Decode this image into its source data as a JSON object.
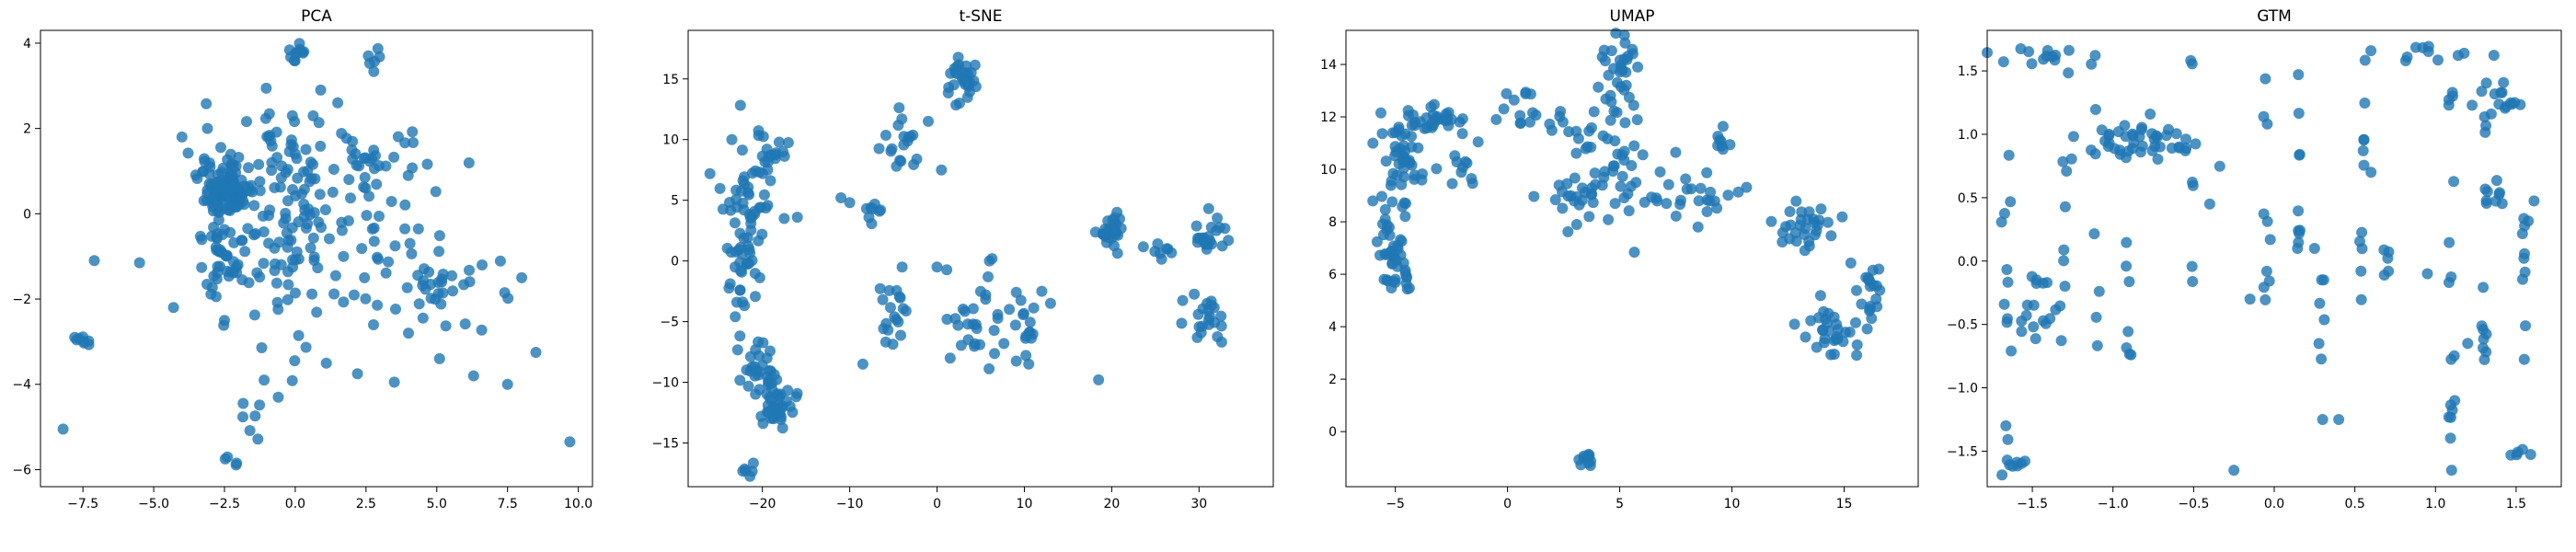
{
  "colors": {
    "point": "#1f77b4",
    "axis": "#000000",
    "background": "#ffffff"
  },
  "chart_data": [
    {
      "type": "scatter",
      "title": "PCA",
      "xlabel": "",
      "ylabel": "",
      "xlim": [
        -9,
        10.5
      ],
      "ylim": [
        -6.4,
        4.3
      ],
      "xticks": [
        -7.5,
        -5.0,
        -2.5,
        0.0,
        2.5,
        5.0,
        7.5,
        10.0
      ],
      "xtick_labels": [
        "−7.5",
        "−5.0",
        "−2.5",
        "0.0",
        "2.5",
        "5.0",
        "7.5",
        "10.0"
      ],
      "yticks": [
        -6,
        -4,
        -2,
        0,
        2,
        4
      ],
      "ytick_labels": [
        "−6",
        "−4",
        "−2",
        "0",
        "2",
        "4"
      ],
      "clusters": [
        {
          "cx": -2.4,
          "cy": 0.6,
          "sx": 0.45,
          "sy": 0.35,
          "n": 110
        },
        {
          "cx": -2.6,
          "cy": -1.0,
          "sx": 0.35,
          "sy": 0.55,
          "n": 45
        },
        {
          "cx": 0.3,
          "cy": 1.3,
          "sx": 1.4,
          "sy": 0.7,
          "n": 60
        },
        {
          "cx": -0.5,
          "cy": -0.6,
          "sx": 0.9,
          "sy": 0.8,
          "n": 45
        },
        {
          "cx": 1.5,
          "cy": -0.3,
          "sx": 1.6,
          "sy": 1.0,
          "n": 40
        },
        {
          "cx": 4.5,
          "cy": -1.5,
          "sx": 1.4,
          "sy": 0.6,
          "n": 40
        },
        {
          "cx": 3.5,
          "cy": 0.8,
          "sx": 1.2,
          "sy": 0.8,
          "n": 20
        },
        {
          "cx": 0.0,
          "cy": 3.75,
          "sx": 0.15,
          "sy": 0.15,
          "n": 10
        },
        {
          "cx": 2.7,
          "cy": 3.6,
          "sx": 0.15,
          "sy": 0.1,
          "n": 6
        },
        {
          "cx": -7.5,
          "cy": -3.05,
          "sx": 0.25,
          "sy": 0.15,
          "n": 8
        },
        {
          "cx": -1.5,
          "cy": -4.7,
          "sx": 0.25,
          "sy": 0.3,
          "n": 6
        },
        {
          "cx": -2.2,
          "cy": -5.8,
          "sx": 0.15,
          "sy": 0.1,
          "n": 4
        },
        {
          "cx": 0.5,
          "cy": -2.5,
          "sx": 1.0,
          "sy": 0.6,
          "n": 12
        }
      ],
      "points": [
        [
          -8.2,
          -5.05
        ],
        [
          9.7,
          -5.35
        ],
        [
          7.5,
          -4.0
        ],
        [
          8.5,
          -3.25
        ],
        [
          -7.1,
          -1.1
        ],
        [
          -5.5,
          -1.15
        ],
        [
          -4.3,
          -2.2
        ],
        [
          6.3,
          -3.8
        ],
        [
          5.1,
          -3.4
        ],
        [
          4.0,
          -2.8
        ],
        [
          3.5,
          -3.95
        ],
        [
          2.2,
          -3.75
        ],
        [
          -0.6,
          -4.3
        ],
        [
          -1.1,
          -3.9
        ],
        [
          -2.5,
          -2.5
        ],
        [
          8.0,
          -1.5
        ],
        [
          7.4,
          -1.85
        ],
        [
          6.6,
          -1.2
        ],
        [
          -0.1,
          2.3
        ],
        [
          1.5,
          2.6
        ],
        [
          -4.0,
          1.8
        ],
        [
          -3.1,
          2.0
        ],
        [
          0.9,
          2.9
        ],
        [
          0.3,
          3.8
        ]
      ]
    },
    {
      "type": "scatter",
      "title": "t-SNE",
      "xlabel": "",
      "ylabel": "",
      "xlim": [
        -28.5,
        38.5
      ],
      "ylim": [
        -18.6,
        19.0
      ],
      "xticks": [
        -20,
        -10,
        0,
        10,
        20,
        30
      ],
      "xtick_labels": [
        "−20",
        "−10",
        "0",
        "10",
        "20",
        "30"
      ],
      "yticks": [
        -15,
        -10,
        -5,
        0,
        5,
        10,
        15
      ],
      "yticks_labels_note": "",
      "ytick_labels": [
        "−15",
        "−10",
        "−5",
        "0",
        "5",
        "10",
        "15"
      ],
      "clusters": [
        {
          "cx": -22,
          "cy": 2.5,
          "sx": 1.2,
          "sy": 3.5,
          "n": 70
        },
        {
          "cx": -19,
          "cy": 8.5,
          "sx": 1.6,
          "sy": 0.8,
          "n": 18
        },
        {
          "cx": -18.5,
          "cy": -12.0,
          "sx": 1.0,
          "sy": 1.1,
          "n": 40
        },
        {
          "cx": -21,
          "cy": -9.0,
          "sx": 1.2,
          "sy": 1.3,
          "n": 25
        },
        {
          "cx": -21.5,
          "cy": -17.1,
          "sx": 0.4,
          "sy": 0.3,
          "n": 6
        },
        {
          "cx": 3,
          "cy": 15,
          "sx": 0.8,
          "sy": 1.1,
          "n": 35
        },
        {
          "cx": -4.5,
          "cy": 9.5,
          "sx": 1.2,
          "sy": 1.3,
          "n": 18
        },
        {
          "cx": -7.5,
          "cy": 4.0,
          "sx": 0.4,
          "sy": 0.7,
          "n": 8
        },
        {
          "cx": -5,
          "cy": -4,
          "sx": 1.3,
          "sy": 1.5,
          "n": 18
        },
        {
          "cx": 5,
          "cy": -5,
          "sx": 1.5,
          "sy": 2.0,
          "n": 25
        },
        {
          "cx": 10,
          "cy": -6,
          "sx": 1.2,
          "sy": 1.6,
          "n": 18
        },
        {
          "cx": 20,
          "cy": 2.5,
          "sx": 0.7,
          "sy": 0.8,
          "n": 30
        },
        {
          "cx": 31,
          "cy": 2.5,
          "sx": 1.3,
          "sy": 0.9,
          "n": 22
        },
        {
          "cx": 31,
          "cy": -4.5,
          "sx": 1.2,
          "sy": 1.0,
          "n": 22
        },
        {
          "cx": 25,
          "cy": 0.5,
          "sx": 1.5,
          "sy": 0.8,
          "n": 8
        }
      ],
      "points": [
        [
          -26,
          7.2
        ],
        [
          -17.5,
          3.5
        ],
        [
          -16,
          3.6
        ],
        [
          -23.5,
          10.0
        ],
        [
          -1,
          11.5
        ],
        [
          0.5,
          7.5
        ],
        [
          -8.5,
          -8.5
        ],
        [
          -4,
          -0.5
        ],
        [
          0,
          -0.5
        ],
        [
          6,
          0
        ],
        [
          12,
          -2.5
        ],
        [
          13,
          -3.5
        ],
        [
          18.5,
          -9.8
        ],
        [
          10.5,
          -8.5
        ],
        [
          1.5,
          -8.0
        ],
        [
          -10,
          4.8
        ],
        [
          -11,
          5.2
        ]
      ]
    },
    {
      "type": "scatter",
      "title": "UMAP",
      "xlabel": "",
      "ylabel": "",
      "xlim": [
        -7.2,
        18.3
      ],
      "ylim": [
        -2.1,
        15.3
      ],
      "xticks": [
        -5,
        0,
        5,
        10,
        15
      ],
      "xtick_labels": [
        "−5",
        "0",
        "5",
        "10",
        "15"
      ],
      "yticks": [
        0,
        2,
        4,
        6,
        8,
        10,
        12,
        14
      ],
      "ytick_labels": [
        "0",
        "2",
        "4",
        "6",
        "8",
        "10",
        "12",
        "14"
      ],
      "clusters": [
        {
          "cx": -5.0,
          "cy": 7.0,
          "sx": 0.35,
          "sy": 1.0,
          "n": 45
        },
        {
          "cx": -4.8,
          "cy": 10.3,
          "sx": 0.4,
          "sy": 0.7,
          "n": 35
        },
        {
          "cx": -3.5,
          "cy": 11.8,
          "sx": 0.9,
          "sy": 0.3,
          "n": 35
        },
        {
          "cx": -2.0,
          "cy": 10.4,
          "sx": 0.6,
          "sy": 0.5,
          "n": 12
        },
        {
          "cx": 4.8,
          "cy": 13.5,
          "sx": 0.5,
          "sy": 0.9,
          "n": 35
        },
        {
          "cx": 4.3,
          "cy": 10.6,
          "sx": 0.8,
          "sy": 0.8,
          "n": 25
        },
        {
          "cx": 3.0,
          "cy": 9.0,
          "sx": 1.2,
          "sy": 0.7,
          "n": 25
        },
        {
          "cx": 7.5,
          "cy": 9.0,
          "sx": 1.4,
          "sy": 0.5,
          "n": 30
        },
        {
          "cx": 9.5,
          "cy": 11.0,
          "sx": 0.2,
          "sy": 0.3,
          "n": 8
        },
        {
          "cx": 13.5,
          "cy": 8.0,
          "sx": 0.7,
          "sy": 0.5,
          "n": 30
        },
        {
          "cx": 14.5,
          "cy": 4.0,
          "sx": 0.6,
          "sy": 0.6,
          "n": 30
        },
        {
          "cx": 16.0,
          "cy": 5.3,
          "sx": 0.5,
          "sy": 0.6,
          "n": 20
        },
        {
          "cx": 3.5,
          "cy": -1.1,
          "sx": 0.25,
          "sy": 0.15,
          "n": 10
        },
        {
          "cx": 0.5,
          "cy": 12.5,
          "sx": 0.5,
          "sy": 0.5,
          "n": 10
        },
        {
          "cx": 2.5,
          "cy": 11.5,
          "sx": 0.6,
          "sy": 0.5,
          "n": 10
        }
      ],
      "points": [
        [
          -0.5,
          11.9
        ],
        [
          1.0,
          11.8
        ],
        [
          2.3,
          9.4
        ],
        [
          5.8,
          13.9
        ],
        [
          6.8,
          9.9
        ],
        [
          9.0,
          8.8
        ],
        [
          -6.0,
          11.0
        ],
        [
          -5.5,
          5.8
        ]
      ]
    },
    {
      "type": "scatter",
      "title": "GTM",
      "xlabel": "",
      "ylabel": "",
      "xlim": [
        -1.78,
        1.78
      ],
      "ylim": [
        -1.78,
        1.82
      ],
      "xticks": [
        -1.5,
        -1.0,
        -0.5,
        0.0,
        0.5,
        1.0,
        1.5
      ],
      "xtick_labels": [
        "−1.5",
        "−1.0",
        "−0.5",
        "0.0",
        "0.5",
        "1.0",
        "1.5"
      ],
      "yticks": [
        -1.5,
        -1.0,
        -0.5,
        0.0,
        0.5,
        1.0,
        1.5
      ],
      "ytick_labels": [
        "−1.5",
        "−1.0",
        "−0.5",
        "0.0",
        "0.5",
        "1.0",
        "1.5"
      ],
      "clusters": [
        {
          "cx": -0.85,
          "cy": 0.95,
          "sx": 0.18,
          "sy": 0.08,
          "n": 45
        },
        {
          "cx": 1.4,
          "cy": 1.25,
          "sx": 0.08,
          "sy": 0.12,
          "n": 18
        },
        {
          "cx": -1.45,
          "cy": -0.45,
          "sx": 0.1,
          "sy": 0.25,
          "n": 20
        },
        {
          "cx": -1.6,
          "cy": -1.62,
          "sx": 0.05,
          "sy": 0.02,
          "n": 8
        },
        {
          "cx": 1.5,
          "cy": -1.52,
          "sx": 0.04,
          "sy": 0.02,
          "n": 5
        },
        {
          "cx": 1.42,
          "cy": 0.5,
          "sx": 0.06,
          "sy": 0.06,
          "n": 8
        },
        {
          "cx": -1.5,
          "cy": 1.6,
          "sx": 0.15,
          "sy": 0.06,
          "n": 14
        },
        {
          "cx": 1.0,
          "cy": 1.62,
          "sx": 0.25,
          "sy": 0.04,
          "n": 12
        }
      ],
      "columns": [
        {
          "x": -1.65,
          "ymin": -1.6,
          "ymax": 1.65,
          "n": 10
        },
        {
          "x": -1.1,
          "ymin": -1.0,
          "ymax": 1.65,
          "n": 7
        },
        {
          "x": -0.9,
          "ymin": -0.95,
          "ymax": 0.2,
          "n": 7
        },
        {
          "x": -0.5,
          "ymin": -0.3,
          "ymax": 1.6,
          "n": 7
        },
        {
          "x": -0.05,
          "ymin": -0.4,
          "ymax": 1.65,
          "n": 10
        },
        {
          "x": 0.15,
          "ymin": -0.3,
          "ymax": 1.6,
          "n": 10
        },
        {
          "x": 0.3,
          "ymin": -1.25,
          "ymax": 0.3,
          "n": 6
        },
        {
          "x": 0.55,
          "ymin": -0.55,
          "ymax": 1.6,
          "n": 10
        },
        {
          "x": 0.7,
          "ymin": -0.2,
          "ymax": 0.1,
          "n": 5
        },
        {
          "x": 1.1,
          "ymin": -1.55,
          "ymax": 1.65,
          "n": 16
        },
        {
          "x": 1.3,
          "ymin": -0.9,
          "ymax": 0.6,
          "n": 10
        },
        {
          "x": 1.55,
          "ymin": -0.9,
          "ymax": 0.5,
          "n": 10
        },
        {
          "x": -1.3,
          "ymin": -0.2,
          "ymax": 0.8,
          "n": 6
        }
      ],
      "points": [
        [
          -0.25,
          -1.65
        ],
        [
          1.1,
          -1.65
        ],
        [
          0.4,
          -1.25
        ],
        [
          0.3,
          -1.25
        ],
        [
          -0.4,
          0.45
        ],
        [
          0.95,
          -0.1
        ],
        [
          1.2,
          -0.65
        ],
        [
          0.6,
          0.7
        ],
        [
          0.25,
          0.1
        ],
        [
          -0.15,
          -0.3
        ]
      ]
    }
  ]
}
